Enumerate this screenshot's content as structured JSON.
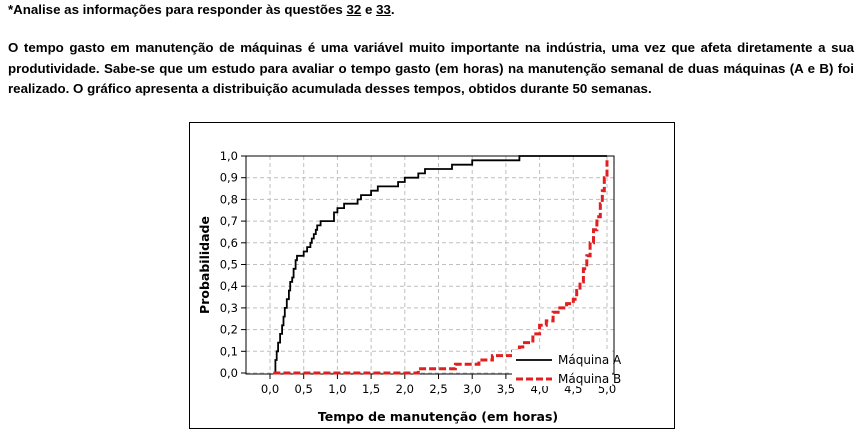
{
  "intro": {
    "prefix": "*Analise as informações para responder às questões ",
    "q1": "32",
    "conj": " e ",
    "q2": "33",
    "suffix": "."
  },
  "paragraph": "O tempo gasto em manutenção de máquinas é uma variável muito importante na indústria, uma vez que afeta diretamente a sua produtividade. Sabe-se que um estudo para avaliar o tempo gasto (em horas) na manutenção semanal de duas máquinas (A e B) foi realizado. O gráfico apresenta a distribuição acumulada desses tempos, obtidos durante 50 semanas.",
  "chart_data": {
    "type": "line",
    "xlabel": "Tempo de manutenção (em horas)",
    "ylabel": "Probabilidade",
    "xlim": [
      0,
      5
    ],
    "ylim": [
      0,
      1
    ],
    "xticks": [
      "0,0",
      "0,5",
      "1,0",
      "1,5",
      "2,0",
      "2,5",
      "3,0",
      "3,5",
      "4,0",
      "4,5",
      "5,0"
    ],
    "yticks": [
      "0,0",
      "0,1",
      "0,2",
      "0,3",
      "0,4",
      "0,5",
      "0,6",
      "0,7",
      "0,8",
      "0,9",
      "1,0"
    ],
    "grid": true,
    "legend_position": "bottom-right",
    "series": [
      {
        "name": "Máquina A",
        "color": "#000000",
        "style": "solid",
        "x": [
          0.05,
          0.08,
          0.1,
          0.12,
          0.15,
          0.18,
          0.2,
          0.22,
          0.25,
          0.28,
          0.3,
          0.33,
          0.35,
          0.38,
          0.4,
          0.5,
          0.55,
          0.6,
          0.62,
          0.65,
          0.68,
          0.7,
          0.75,
          0.8,
          0.95,
          1.0,
          1.1,
          1.2,
          1.3,
          1.35,
          1.4,
          1.5,
          1.6,
          1.7,
          1.9,
          2.0,
          2.2,
          2.3,
          2.7,
          3.0,
          3.7,
          5.0
        ],
        "y": [
          0.0,
          0.06,
          0.1,
          0.14,
          0.18,
          0.22,
          0.26,
          0.3,
          0.34,
          0.38,
          0.42,
          0.44,
          0.48,
          0.52,
          0.54,
          0.56,
          0.58,
          0.6,
          0.62,
          0.64,
          0.66,
          0.68,
          0.7,
          0.7,
          0.74,
          0.76,
          0.78,
          0.78,
          0.8,
          0.82,
          0.82,
          0.84,
          0.86,
          0.86,
          0.88,
          0.9,
          0.92,
          0.94,
          0.96,
          0.98,
          1.0,
          1.0
        ]
      },
      {
        "name": "Máquina B",
        "color": "#e02020",
        "style": "dashed",
        "x": [
          0.05,
          2.0,
          2.2,
          2.5,
          2.75,
          3.0,
          3.1,
          3.3,
          3.6,
          3.7,
          3.75,
          3.9,
          4.0,
          4.1,
          4.2,
          4.3,
          4.4,
          4.5,
          4.55,
          4.6,
          4.65,
          4.7,
          4.75,
          4.8,
          4.85,
          4.9,
          4.93,
          4.96,
          5.0
        ],
        "y": [
          0.0,
          0.0,
          0.02,
          0.02,
          0.04,
          0.04,
          0.06,
          0.08,
          0.1,
          0.12,
          0.14,
          0.18,
          0.22,
          0.24,
          0.28,
          0.3,
          0.32,
          0.34,
          0.38,
          0.42,
          0.48,
          0.54,
          0.6,
          0.66,
          0.72,
          0.78,
          0.84,
          0.9,
          0.98
        ]
      }
    ]
  }
}
